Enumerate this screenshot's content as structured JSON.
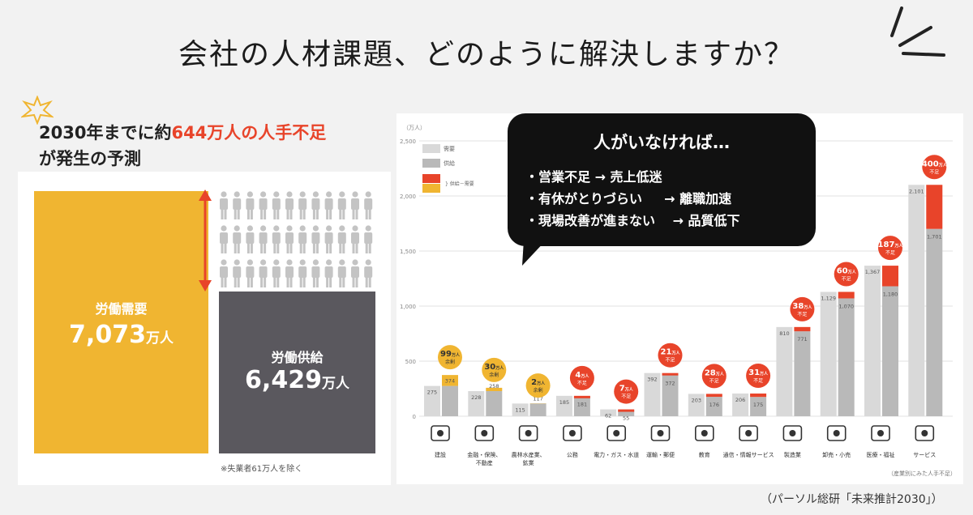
{
  "title": "会社の人材課題、どのように解決しますか？",
  "left_panel": {
    "headline_prefix": "2030年までに約",
    "headline_highlight": "644万人の人手不足",
    "headline_line2": "が発生の予測",
    "demand_label": "労働需要",
    "demand_value": "7,073",
    "supply_label": "労働供給",
    "supply_value": "6,429",
    "unit": "万人",
    "footnote": "※失業者61万人を除く"
  },
  "bubble": {
    "title": "人がいなければ…",
    "items": [
      "・営業不足 → 売上低迷",
      "・有休がとりづらい 　 → 離職加速",
      "・現場改善が進まない 　→ 品質低下"
    ]
  },
  "source": "（パーソル総研「未来推計2030」）",
  "colors": {
    "demand": "#f0b531",
    "supply": "#5a585e",
    "shortage": "#e8442a",
    "gray_bar": "#b9b9b9",
    "light_bar": "#d9d9d9"
  },
  "chart_data": {
    "type": "bar",
    "unit_label": "（万人）",
    "y_ticks": [
      "0",
      "500",
      "1,000",
      "1,500",
      "2,000",
      "2,500"
    ],
    "ylim": [
      0,
      2500
    ],
    "legend": [
      "需要",
      "供給",
      "供給－需要"
    ],
    "footnote": "（産業別にみた人手不足）",
    "categories": [
      {
        "name": "建設",
        "icon": "construction-icon"
      },
      {
        "name": "金融・保険、不動産",
        "icon": "finance-icon"
      },
      {
        "name": "農林水産業、鉱業",
        "icon": "agriculture-icon"
      },
      {
        "name": "公務",
        "icon": "government-icon"
      },
      {
        "name": "電力・ガス・水道",
        "icon": "utility-icon"
      },
      {
        "name": "運輸・郵便",
        "icon": "truck-icon"
      },
      {
        "name": "教育",
        "icon": "book-icon"
      },
      {
        "name": "通信・情報サービス",
        "icon": "phone-icon"
      },
      {
        "name": "製造業",
        "icon": "factory-icon"
      },
      {
        "name": "卸売・小売",
        "icon": "cart-icon"
      },
      {
        "name": "医療・福祉",
        "icon": "medical-icon"
      },
      {
        "name": "サービス",
        "icon": "dining-icon"
      }
    ],
    "series": [
      {
        "name": "需要",
        "values": [
          275,
          228,
          115,
          185,
          62,
          392,
          203,
          206,
          810,
          1129,
          1367,
          2101
        ]
      },
      {
        "name": "供給",
        "values": [
          374,
          258,
          117,
          181,
          55,
          372,
          176,
          175,
          771,
          1070,
          1180,
          1701
        ]
      }
    ],
    "gap_badges": [
      {
        "num": "99",
        "small": "万人",
        "word": "余剰",
        "kind": "surplus"
      },
      {
        "num": "30",
        "small": "万人",
        "word": "余剰",
        "kind": "surplus"
      },
      {
        "num": "2",
        "small": "万人",
        "word": "余剰",
        "kind": "surplus"
      },
      {
        "num": "4",
        "small": "万人",
        "word": "不足",
        "kind": "shortage"
      },
      {
        "num": "7",
        "small": "万人",
        "word": "不足",
        "kind": "shortage"
      },
      {
        "num": "21",
        "small": "万人",
        "word": "不足",
        "kind": "shortage"
      },
      {
        "num": "28",
        "small": "万人",
        "word": "不足",
        "kind": "shortage"
      },
      {
        "num": "31",
        "small": "万人",
        "word": "不足",
        "kind": "shortage"
      },
      {
        "num": "38",
        "small": "万人",
        "word": "不足",
        "kind": "shortage"
      },
      {
        "num": "60",
        "small": "万人",
        "word": "不足",
        "kind": "shortage"
      },
      {
        "num": "187",
        "small": "万人",
        "word": "不足",
        "kind": "shortage"
      },
      {
        "num": "400",
        "small": "万人",
        "word": "不足",
        "kind": "shortage"
      }
    ]
  }
}
